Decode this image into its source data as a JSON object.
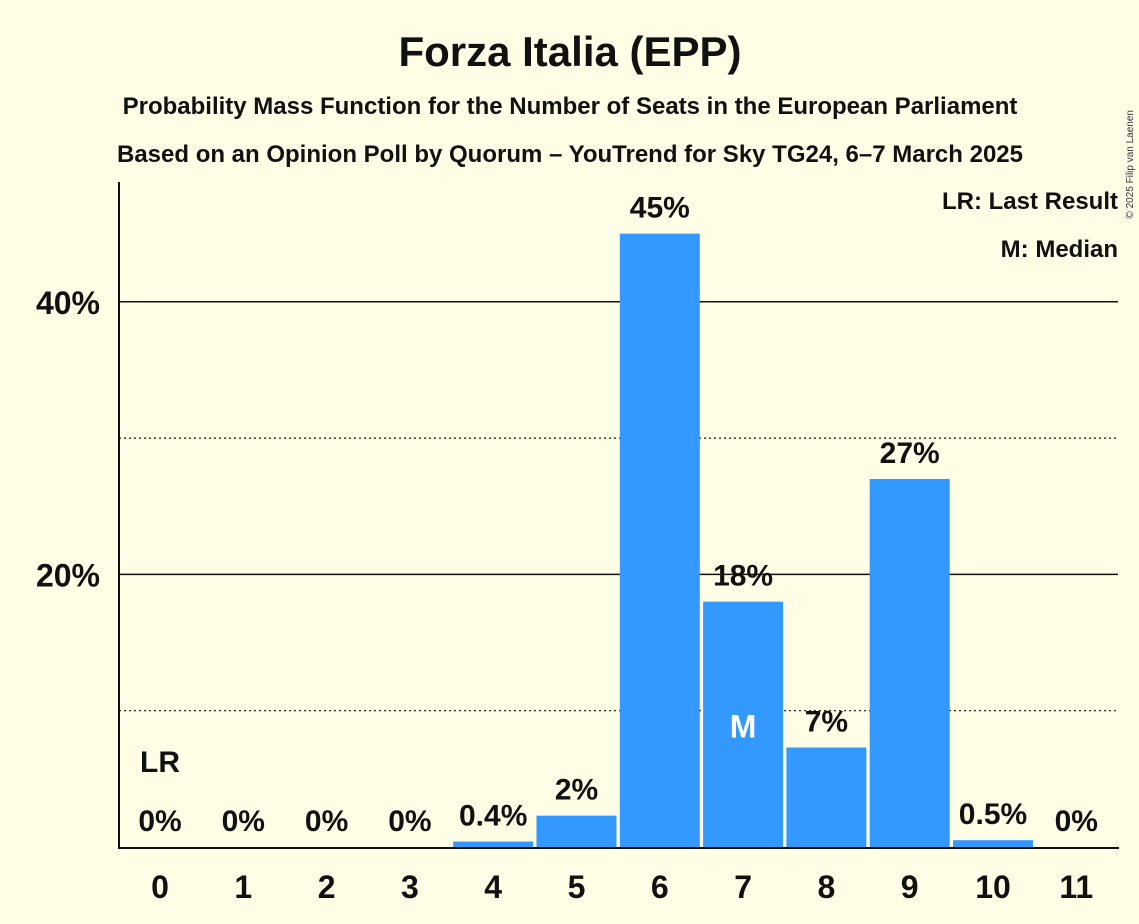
{
  "colors": {
    "background": "#fffde6",
    "bar": "#3399ff",
    "text": "#111111"
  },
  "copyright": "© 2025 Filip van Laenen",
  "chart_data": {
    "type": "bar",
    "title": "Forza Italia (EPP)",
    "subtitle": "Probability Mass Function for the Number of Seats in the European Parliament",
    "subtitle2": "Based on an Opinion Poll by Quorum – YouTrend for Sky TG24, 6–7 March 2025",
    "categories": [
      "0",
      "1",
      "2",
      "3",
      "4",
      "5",
      "6",
      "7",
      "8",
      "9",
      "10",
      "11"
    ],
    "values": [
      0,
      0,
      0,
      0,
      0.4,
      2.3,
      45,
      18,
      7.3,
      27,
      0.5,
      0
    ],
    "value_labels": [
      "0%",
      "0%",
      "0%",
      "0%",
      "0.4%",
      "2%",
      "45%",
      "18%",
      "7%",
      "27%",
      "0.5%",
      "0%"
    ],
    "ylim": [
      0,
      49
    ],
    "yticks_major": [
      20,
      40
    ],
    "yticks_major_labels": [
      "20%",
      "40%"
    ],
    "yticks_minor": [
      10,
      30
    ],
    "last_result_index": 0,
    "last_result_marker": "LR",
    "median_index": 7,
    "median_marker": "M",
    "legend": [
      "LR: Last Result",
      "M: Median"
    ],
    "legend_position": "top-right",
    "grid": true
  }
}
